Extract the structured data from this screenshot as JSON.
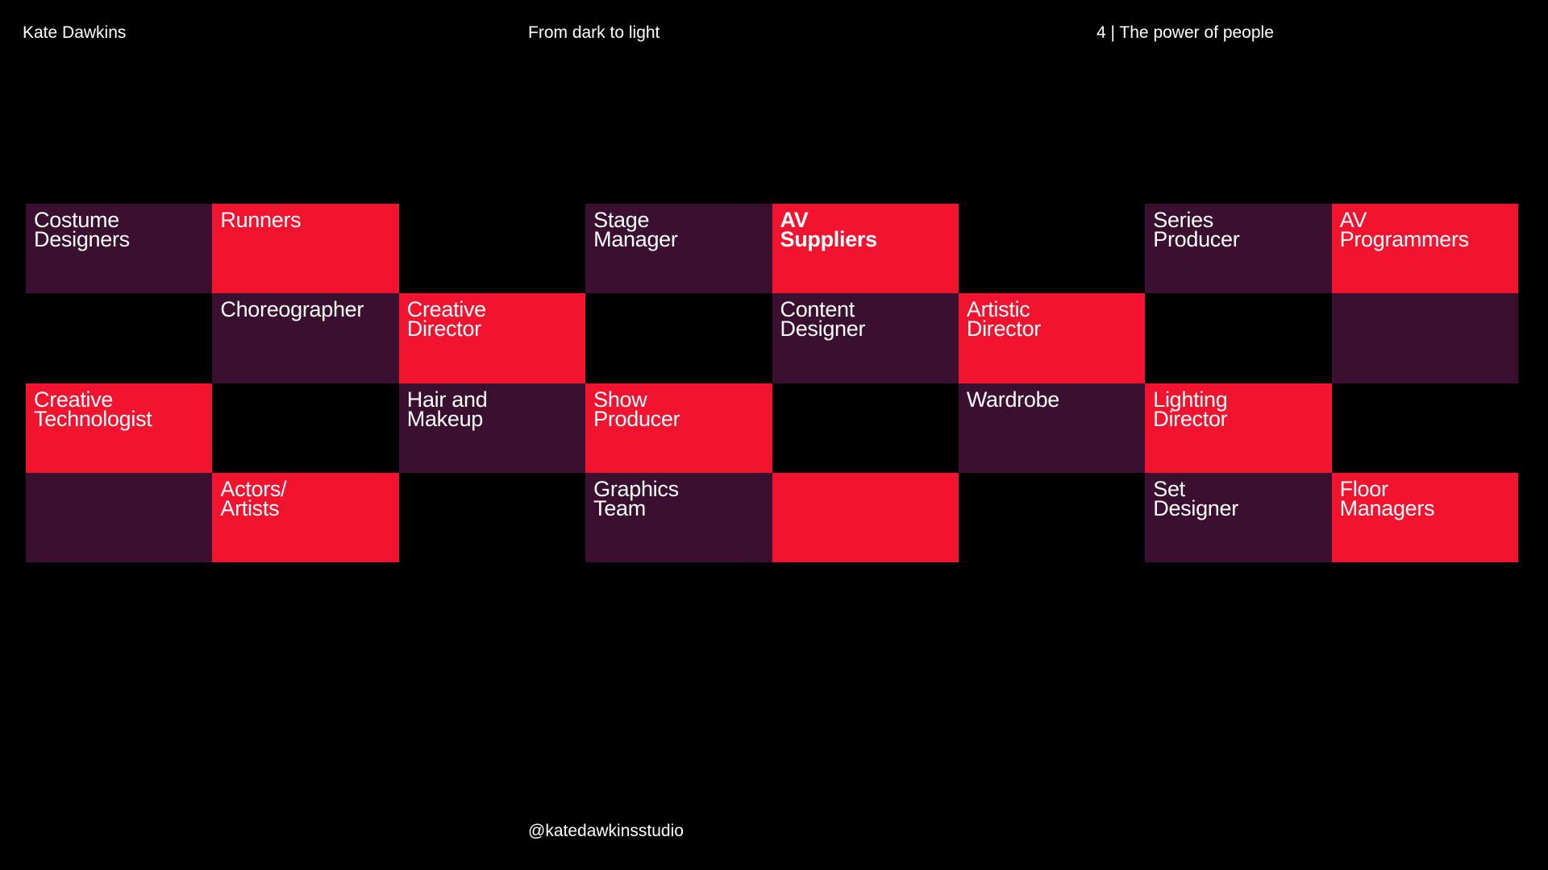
{
  "header": {
    "author": "Kate Dawkins",
    "title": "From dark to light",
    "section": "4 | The power of people"
  },
  "grid": {
    "rows": [
      [
        {
          "fill": "#3a0f30",
          "lines": [
            "Costume",
            "Designers"
          ]
        },
        {
          "fill": "#f2132f",
          "lines": [
            "Runners"
          ]
        },
        {
          "fill": "#000000"
        },
        {
          "fill": "#3a0f30",
          "lines": [
            "Stage",
            "Manager"
          ]
        },
        {
          "fill": "#f2132f",
          "lines": [
            "AV",
            "Suppliers"
          ],
          "bold": true
        },
        {
          "fill": "#000000"
        },
        {
          "fill": "#3a0f30",
          "lines": [
            "Series",
            "Producer"
          ]
        },
        {
          "fill": "#f2132f",
          "lines": [
            "AV",
            "Programmers"
          ]
        }
      ],
      [
        {
          "fill": "#000000"
        },
        {
          "fill": "#3a0f30",
          "lines": [
            "Choreographer"
          ]
        },
        {
          "fill": "#f2132f",
          "lines": [
            "Creative",
            "Director"
          ]
        },
        {
          "fill": "#000000"
        },
        {
          "fill": "#3a0f30",
          "lines": [
            "Content",
            "Designer"
          ]
        },
        {
          "fill": "#f2132f",
          "lines": [
            "Artistic",
            "Director"
          ]
        },
        {
          "fill": "#000000"
        },
        {
          "fill": "#3a0f30"
        }
      ],
      [
        {
          "fill": "#f2132f",
          "lines": [
            "Creative",
            "Technologist"
          ]
        },
        {
          "fill": "#000000"
        },
        {
          "fill": "#3a0f30",
          "lines": [
            "Hair and",
            "Makeup"
          ]
        },
        {
          "fill": "#f2132f",
          "lines": [
            "Show",
            "Producer"
          ]
        },
        {
          "fill": "#000000"
        },
        {
          "fill": "#3a0f30",
          "lines": [
            "Wardrobe"
          ]
        },
        {
          "fill": "#f2132f",
          "lines": [
            "Lighting",
            "Director"
          ]
        },
        {
          "fill": "#000000"
        }
      ],
      [
        {
          "fill": "#3a0f30"
        },
        {
          "fill": "#f2132f",
          "lines": [
            "Actors/",
            "Artists"
          ]
        },
        {
          "fill": "#000000"
        },
        {
          "fill": "#3a0f30",
          "lines": [
            "Graphics",
            "Team"
          ]
        },
        {
          "fill": "#f2132f"
        },
        {
          "fill": "#000000"
        },
        {
          "fill": "#3a0f30",
          "lines": [
            "Set",
            "Designer"
          ]
        },
        {
          "fill": "#f2132f",
          "lines": [
            "Floor",
            "Managers"
          ]
        }
      ]
    ]
  },
  "footer": {
    "handle": "@katedawkinsstudio"
  }
}
